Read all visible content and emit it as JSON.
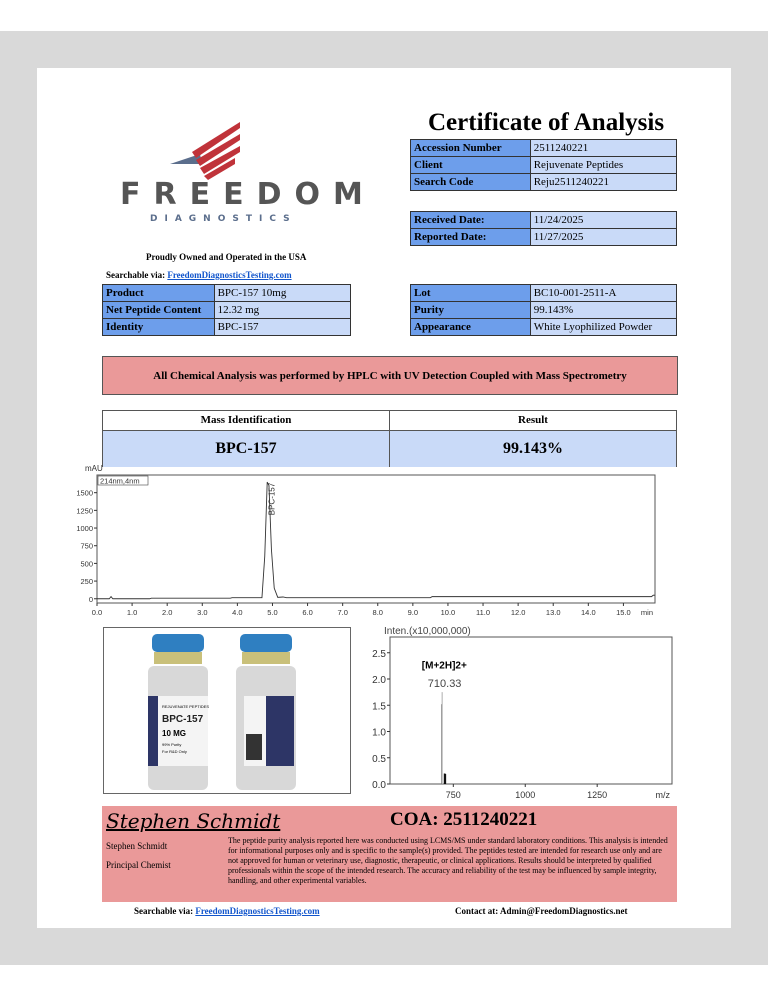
{
  "title": "Certificate of Analysis",
  "logo": {
    "name": "FREEDOM",
    "sub": "DIAGNOSTICS",
    "tagline": "Proudly Owned and Operated in the USA",
    "colors": {
      "stripes": "#c0333a",
      "eagle": "#5b6e8c",
      "text": "#555555"
    }
  },
  "searchable": {
    "label": "Searchable via:",
    "link": "FreedomDiagnosticsTesting.com"
  },
  "accession": [
    {
      "k": "Accession Number",
      "v": "2511240221"
    },
    {
      "k": "Client",
      "v": "Rejuvenate Peptides"
    },
    {
      "k": "Search Code",
      "v": "Reju2511240221"
    }
  ],
  "dates": [
    {
      "k": "Received Date:",
      "v": "11/24/2025"
    },
    {
      "k": "Reported Date:",
      "v": "11/27/2025"
    }
  ],
  "product": [
    {
      "k": "Product",
      "v": "BPC-157 10mg"
    },
    {
      "k": "Net Peptide Content",
      "v": "12.32 mg"
    },
    {
      "k": "Identity",
      "v": "BPC-157"
    }
  ],
  "lot": [
    {
      "k": "Lot",
      "v": "BC10-001-2511-A"
    },
    {
      "k": "Purity",
      "v": "99.143%"
    },
    {
      "k": "Appearance",
      "v": "White Lyophilized Powder"
    }
  ],
  "banner": "All Chemical Analysis was performed by HPLC with UV Detection Coupled with Mass Spectrometry",
  "result": {
    "h1": "Mass Identification",
    "h2": "Result",
    "v1": "BPC-157",
    "v2": "99.143%"
  },
  "colors": {
    "label_cell": "#6d9eeb",
    "value_cell": "#c9daf8",
    "banner": "#ea9999"
  },
  "chart_data": [
    {
      "type": "line",
      "title": "",
      "ylabel": "mAU",
      "xlabel": "min",
      "legend": "214nm,4nm",
      "annotation": "BPC-157",
      "xlim": [
        0,
        15.9
      ],
      "ylim": [
        -60,
        1750
      ],
      "xticks": [
        "0.0",
        "1.0",
        "2.0",
        "3.0",
        "4.0",
        "5.0",
        "6.0",
        "7.0",
        "8.0",
        "9.0",
        "10.0",
        "11.0",
        "12.0",
        "13.0",
        "14.0",
        "15.0"
      ],
      "yticks": [
        "0",
        "250",
        "500",
        "750",
        "1000",
        "1250",
        "1500"
      ],
      "x": [
        0,
        0.35,
        0.4,
        0.45,
        1.5,
        1.55,
        3.8,
        3.85,
        4.7,
        4.78,
        4.85,
        4.9,
        4.97,
        5.05,
        5.15,
        5.3,
        5.4,
        9.5,
        9.55,
        15.8,
        15.85,
        15.9
      ],
      "y": [
        0,
        0,
        30,
        0,
        0,
        8,
        8,
        15,
        15,
        600,
        1650,
        1600,
        700,
        150,
        20,
        25,
        15,
        15,
        30,
        30,
        50,
        50
      ]
    },
    {
      "type": "bar",
      "xlabel": "m/z",
      "ylabel": "Inten.(x10,000,000)",
      "xlim": [
        530,
        1510
      ],
      "ylim": [
        0,
        2.8
      ],
      "xticks": [
        "750",
        "1000",
        "1250"
      ],
      "yticks": [
        "0.0",
        "0.5",
        "1.0",
        "1.5",
        "2.0",
        "2.5"
      ],
      "annotation_label": "[M+2H]2+",
      "peak_label": "710.33",
      "x": [
        710.33,
        711.3,
        719,
        721,
        723
      ],
      "y": [
        1.52,
        1.75,
        0.2,
        0.2,
        0.19
      ]
    }
  ],
  "vial": {
    "brand": "REJUVENATE PEPTIDES",
    "name": "BPC-157",
    "dose": "10 MG",
    "purity": "99% Purity",
    "use": "For R&D Only"
  },
  "footer": {
    "signature": "Stephen Schmidt",
    "coa": "COA: 2511240221",
    "name": "Stephen Schmidt",
    "role": "Principal Chemist",
    "disclaimer": "The peptide purity analysis reported here was conducted using LCMS/MS under standard laboratory conditions. This analysis is intended for informational purposes only and is specific to the sample(s) provided. The peptides tested are intended for research use only and are not approved for human or veterinary use, diagnostic, therapeutic, or clinical applications. Results should be interpreted by qualified professionals within the scope of the intended research. The accuracy and reliability of the test may be influenced by sample integrity, handling, and other experimental variables.",
    "searchable_label": "Searchable via:",
    "searchable_link": "FreedomDiagnosticsTesting.com",
    "contact": "Contact at: Admin@FreedomDiagnostics.net"
  }
}
